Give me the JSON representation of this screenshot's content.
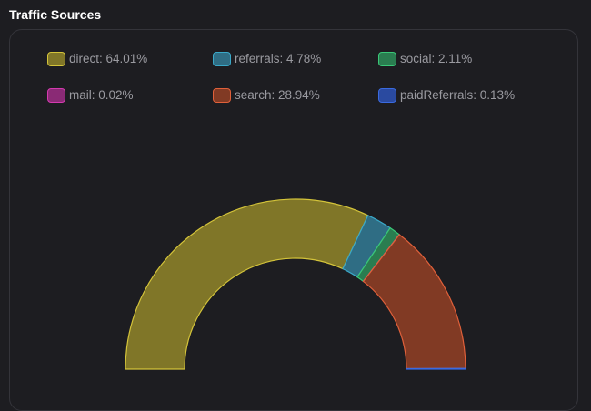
{
  "header": {
    "title": "Traffic Sources"
  },
  "chart_data": {
    "type": "pie",
    "variant": "half-donut",
    "legend_position": "top",
    "categories": [
      "direct",
      "referrals",
      "social",
      "mail",
      "search",
      "paidReferrals"
    ],
    "values": [
      64.01,
      4.78,
      2.11,
      0.02,
      28.94,
      0.13
    ],
    "legend_labels": [
      "direct: 64.01%",
      "referrals: 4.78%",
      "social: 2.11%",
      "mail: 0.02%",
      "search: 28.94%",
      "paidReferrals: 0.13%"
    ],
    "colors": [
      "#d4c43a",
      "#3aa8c8",
      "#3ac878",
      "#d43ab0",
      "#e0603a",
      "#3a6ae0"
    ],
    "fills": [
      "#807628",
      "#2f6d84",
      "#2a7d50",
      "#8a2a75",
      "#813a24",
      "#2a4aa0"
    ]
  }
}
